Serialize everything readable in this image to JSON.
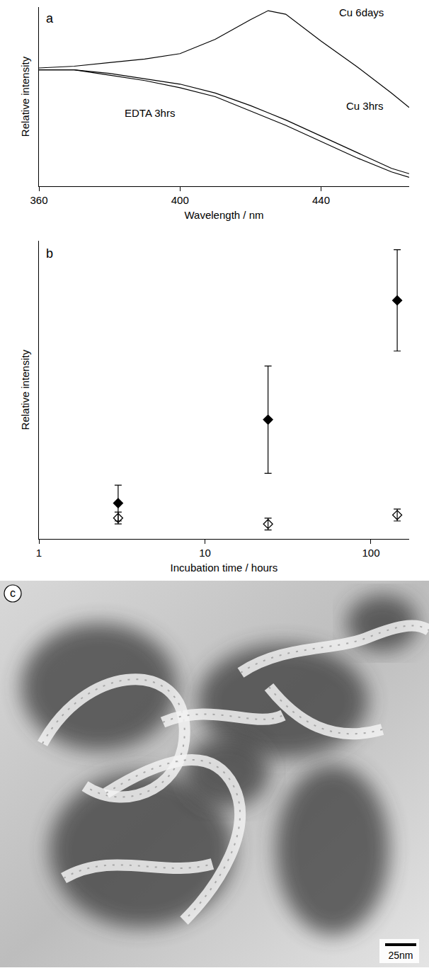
{
  "chart_data": [
    {
      "type": "line",
      "label": "a",
      "x_label": "Wavelength / nm",
      "y_label": "Relative intensity",
      "xlim": [
        360,
        465
      ],
      "xticks": [
        360,
        400,
        440
      ],
      "ylim": [
        0,
        100
      ],
      "tick_labels": "x",
      "x": [
        360,
        370,
        380,
        390,
        400,
        410,
        420,
        425,
        430,
        440,
        450,
        460,
        465
      ],
      "series": [
        {
          "name": "Cu 6days",
          "color": "#000000",
          "values": [
            66,
            67,
            69,
            71,
            74,
            82,
            93,
            98,
            96,
            81,
            67,
            52,
            44
          ]
        },
        {
          "name": "Cu 3hrs",
          "color": "#000000",
          "values": [
            65,
            65,
            63,
            60,
            57,
            52,
            45,
            41,
            37,
            28,
            19,
            10,
            7
          ]
        },
        {
          "name": "EDTA 3hrs",
          "color": "#000000",
          "values": [
            65,
            65,
            62,
            59,
            55,
            50,
            42,
            38,
            34,
            25,
            16,
            8,
            5
          ]
        }
      ]
    },
    {
      "type": "scatter",
      "label": "b",
      "x_label": "Incubation time / hours",
      "y_label": "Relative intensity",
      "log": "x",
      "xlim": [
        1,
        170
      ],
      "xticks": [
        1,
        10,
        100
      ],
      "ylim": [
        0,
        100
      ],
      "tick_labels": "x",
      "x": [
        3,
        24,
        144
      ],
      "series": [
        {
          "color": "#000000",
          "marker": "diamond",
          "values": [
            12,
            40,
            80
          ],
          "errors": [
            6,
            18,
            17
          ]
        },
        {
          "color": "#000000",
          "marker": "diamond-open",
          "values": [
            7,
            5,
            8
          ],
          "errors": [
            2,
            2,
            2
          ]
        }
      ]
    }
  ],
  "image": {
    "label": "c",
    "scale_bar": "25nm"
  }
}
